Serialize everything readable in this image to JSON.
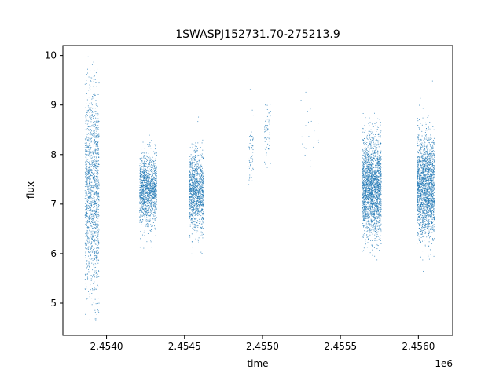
{
  "chart_data": {
    "type": "scatter",
    "title": "1SWASPJ152731.70-275213.9",
    "xlabel": "time",
    "ylabel": "flux",
    "x_offset_label": "1e6",
    "xlim": [
      2453720,
      2456220
    ],
    "ylim": [
      4.35,
      10.2
    ],
    "xticks": [
      2.454,
      2.4545,
      2.455,
      2.4555,
      2.456
    ],
    "xtick_labels": [
      "2.4540",
      "2.4545",
      "2.4550",
      "2.4555",
      "2.4560"
    ],
    "yticks": [
      5,
      6,
      7,
      8,
      9,
      10
    ],
    "ytick_labels": [
      "5",
      "6",
      "7",
      "8",
      "9",
      "10"
    ],
    "grid": false,
    "marker_color": "#1f77b4",
    "series": [
      {
        "clusters": [
          {
            "x_start": 2453860,
            "x_end": 2453950,
            "median": 7.2,
            "sd": 1.05,
            "count": 1400
          },
          {
            "x_start": 2454210,
            "x_end": 2454320,
            "median": 7.3,
            "sd": 0.35,
            "count": 1300
          },
          {
            "x_start": 2454530,
            "x_end": 2454620,
            "median": 7.25,
            "sd": 0.4,
            "count": 1100
          },
          {
            "x_start": 2454910,
            "x_end": 2454940,
            "median": 8.0,
            "sd": 0.4,
            "count": 60
          },
          {
            "x_start": 2455010,
            "x_end": 2455050,
            "median": 8.4,
            "sd": 0.4,
            "count": 60
          },
          {
            "x_start": 2455230,
            "x_end": 2455360,
            "median": 8.4,
            "sd": 0.5,
            "count": 25
          },
          {
            "x_start": 2455640,
            "x_end": 2455760,
            "median": 7.35,
            "sd": 0.5,
            "count": 2200
          },
          {
            "x_start": 2455990,
            "x_end": 2456100,
            "median": 7.35,
            "sd": 0.5,
            "count": 2000
          }
        ]
      }
    ]
  }
}
